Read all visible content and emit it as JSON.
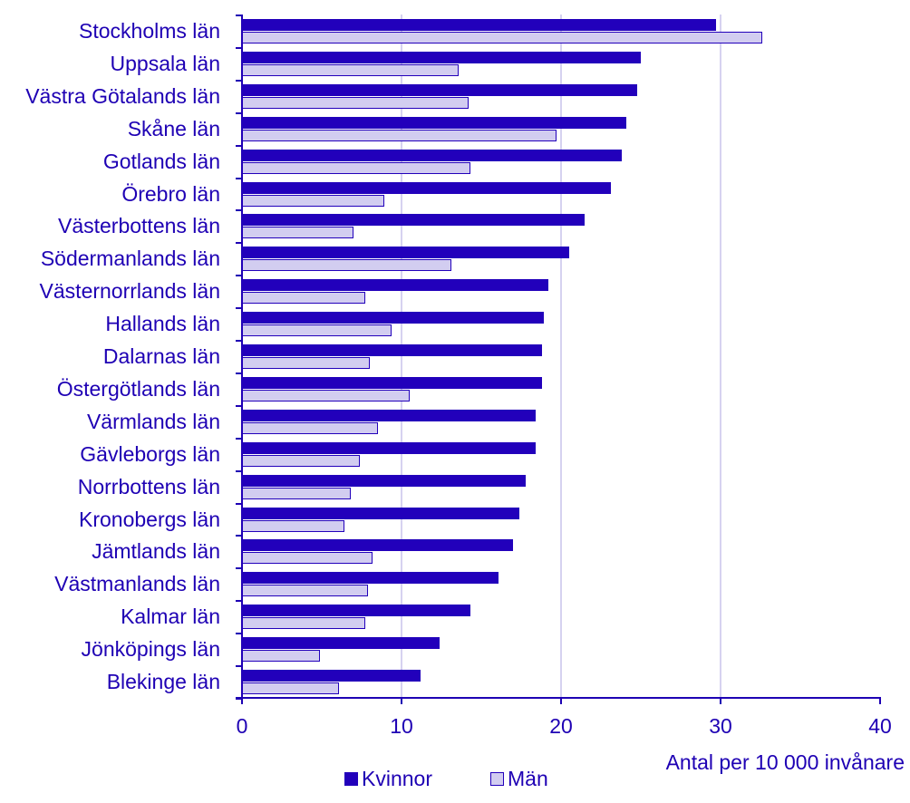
{
  "chart_data": {
    "type": "bar",
    "orientation": "horizontal",
    "title": "",
    "xlabel": "Antal per 10 000 invånare",
    "ylabel": "",
    "xlim": [
      0,
      40
    ],
    "xticks": [
      0,
      10,
      20,
      30,
      40
    ],
    "grid": true,
    "legend_position": "bottom",
    "colors": {
      "Kvinnor": "#2200BB",
      "Män": "#D2CDF0"
    },
    "categories": [
      "Stockholms län",
      "Uppsala län",
      "Västra Götalands län",
      "Skåne län",
      "Gotlands län",
      "Örebro län",
      "Västerbottens län",
      "Södermanlands län",
      "Västernorrlands län",
      "Hallands län",
      "Dalarnas län",
      "Östergötlands län",
      "Värmlands län",
      "Gävleborgs län",
      "Norrbottens län",
      "Kronobergs län",
      "Jämtlands län",
      "Västmanlands län",
      "Kalmar län",
      "Jönköpings län",
      "Blekinge län"
    ],
    "series": [
      {
        "name": "Kvinnor",
        "values": [
          29.7,
          25.0,
          24.8,
          24.1,
          23.8,
          23.1,
          21.5,
          20.5,
          19.2,
          18.9,
          18.8,
          18.8,
          18.4,
          18.4,
          17.8,
          17.4,
          17.0,
          16.1,
          14.3,
          12.4,
          11.2
        ]
      },
      {
        "name": "Män",
        "values": [
          32.6,
          13.6,
          14.2,
          19.7,
          14.3,
          8.9,
          7.0,
          13.1,
          7.7,
          9.4,
          8.0,
          10.5,
          8.5,
          7.4,
          6.8,
          6.4,
          8.2,
          7.9,
          7.7,
          4.9,
          6.1
        ]
      }
    ]
  }
}
